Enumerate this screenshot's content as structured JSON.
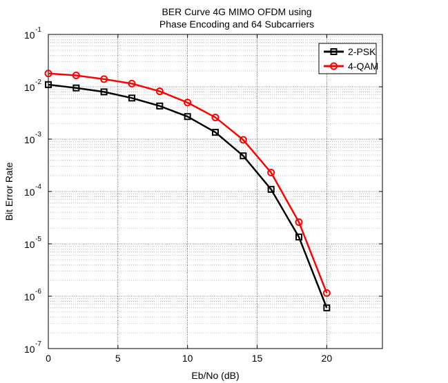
{
  "chart_data": {
    "type": "line",
    "title": [
      "BER Curve 4G MIMO OFDM using",
      "Phase Encoding and 64 Subcarriers"
    ],
    "xlabel": "Eb/No (dB)",
    "ylabel": "Bit Error Rate",
    "xlim": [
      0,
      24
    ],
    "ylim": [
      1e-07,
      0.1
    ],
    "yscale": "log",
    "xticks": [
      0,
      5,
      10,
      15,
      20
    ],
    "yticks": [
      {
        "base": "10",
        "exp": "-7",
        "value": 1e-07
      },
      {
        "base": "10",
        "exp": "-6",
        "value": 1e-06
      },
      {
        "base": "10",
        "exp": "-5",
        "value": 1e-05
      },
      {
        "base": "10",
        "exp": "-4",
        "value": 0.0001
      },
      {
        "base": "10",
        "exp": "-3",
        "value": 0.001
      },
      {
        "base": "10",
        "exp": "-2",
        "value": 0.01
      },
      {
        "base": "10",
        "exp": "-1",
        "value": 0.1
      }
    ],
    "grid": true,
    "legend_position": "top-right",
    "series": [
      {
        "name": "2-PSK",
        "color": "#000000",
        "marker": "square",
        "x": [
          0,
          2,
          4,
          6,
          8,
          10,
          12,
          14,
          16,
          18,
          20
        ],
        "y": [
          0.011,
          0.0095,
          0.008,
          0.0061,
          0.0043,
          0.0027,
          0.00135,
          0.00048,
          0.00011,
          1.35e-05,
          6e-07
        ]
      },
      {
        "name": "4-QAM",
        "color": "#ff0000",
        "marker": "circle",
        "x": [
          0,
          2,
          4,
          6,
          8,
          10,
          12,
          14,
          16,
          18,
          20
        ],
        "y": [
          0.018,
          0.0165,
          0.014,
          0.0115,
          0.0082,
          0.005,
          0.0026,
          0.00097,
          0.00023,
          2.6e-05,
          1.15e-06
        ]
      }
    ]
  }
}
